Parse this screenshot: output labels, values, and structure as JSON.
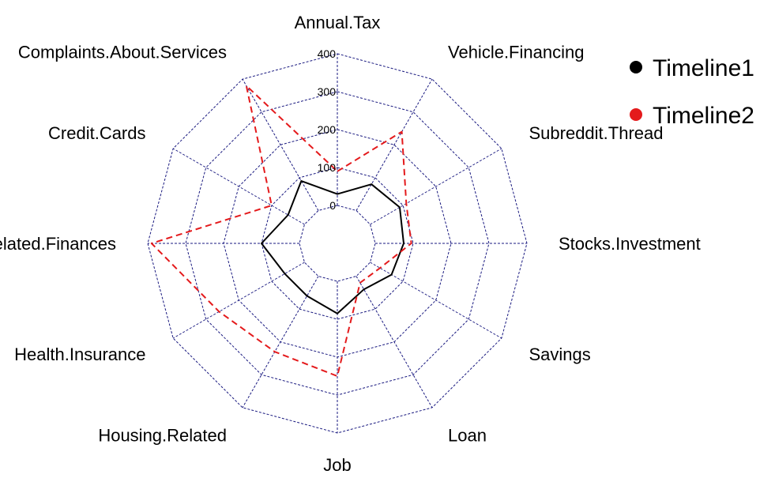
{
  "chart_data": {
    "type": "radar",
    "categories": [
      "Annual.Tax",
      "Vehicle.Financing",
      "Subreddit.Thread",
      "Stocks.Investment",
      "Savings",
      "Loan",
      "Job",
      "Housing.Related",
      "Health.Insurance",
      "Family.Related.Finances",
      "Credit.Cards",
      "Complaints.About.Services"
    ],
    "rlim": [
      0,
      400
    ],
    "ticks": [
      "0",
      "100",
      "200",
      "300",
      "400"
    ],
    "grid": true,
    "legend_position": "top-right",
    "series": [
      {
        "name": "Timeline1",
        "color": "#000000",
        "line_style": "solid",
        "values": [
          30,
          80,
          90,
          75,
          65,
          40,
          85,
          60,
          60,
          100,
          50,
          90
        ]
      },
      {
        "name": "Timeline2",
        "color": "#e41a1c",
        "line_style": "dashed",
        "values": [
          90,
          240,
          110,
          95,
          30,
          20,
          250,
          230,
          260,
          390,
          100,
          380
        ]
      }
    ],
    "grid_color": "#1a1a80"
  }
}
